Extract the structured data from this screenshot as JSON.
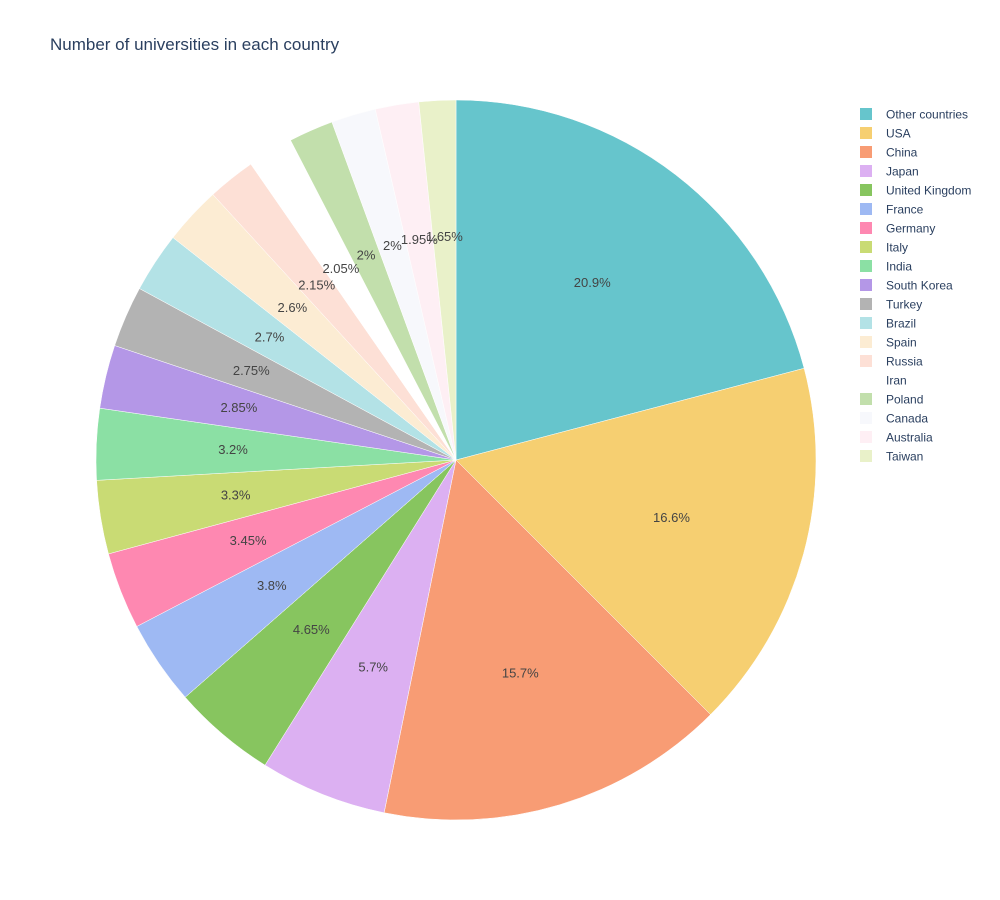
{
  "chart_data": {
    "type": "pie",
    "title": "Number of universities in each country",
    "legend_position": "top-right",
    "direction": "clockwise",
    "start_angle": "top",
    "slices": [
      {
        "label": "Other countries",
        "value": 20.9,
        "text": "20.9%",
        "color": "#66c5cc"
      },
      {
        "label": "USA",
        "value": 16.6,
        "text": "16.6%",
        "color": "#f6cf71"
      },
      {
        "label": "China",
        "value": 15.7,
        "text": "15.7%",
        "color": "#f89c74"
      },
      {
        "label": "Japan",
        "value": 5.7,
        "text": "5.7%",
        "color": "#dcb0f2"
      },
      {
        "label": "United Kingdom",
        "value": 4.65,
        "text": "4.65%",
        "color": "#87c55f"
      },
      {
        "label": "France",
        "value": 3.8,
        "text": "3.8%",
        "color": "#9eb9f3"
      },
      {
        "label": "Germany",
        "value": 3.45,
        "text": "3.45%",
        "color": "#fe88b1"
      },
      {
        "label": "Italy",
        "value": 3.3,
        "text": "3.3%",
        "color": "#c9db74"
      },
      {
        "label": "India",
        "value": 3.2,
        "text": "3.2%",
        "color": "#8be0a4"
      },
      {
        "label": "South Korea",
        "value": 2.85,
        "text": "2.85%",
        "color": "#b497e7"
      },
      {
        "label": "Turkey",
        "value": 2.75,
        "text": "2.75%",
        "color": "#b3b3b3"
      },
      {
        "label": "Brazil",
        "value": 2.7,
        "text": "2.7%",
        "color": "#b3e2e6"
      },
      {
        "label": "Spain",
        "value": 2.6,
        "text": "2.6%",
        "color": "#fcecd3"
      },
      {
        "label": "Russia",
        "value": 2.15,
        "text": "2.15%",
        "color": "#fde0d6"
      },
      {
        "label": "Iran",
        "value": 2.05,
        "text": "2.05%",
        "color": "#ffffff"
      },
      {
        "label": "Poland",
        "value": 2.0,
        "text": "2%",
        "color": "#c2dfac"
      },
      {
        "label": "Canada",
        "value": 2.0,
        "text": "2%",
        "color": "#f7f8fc"
      },
      {
        "label": "Australia",
        "value": 1.95,
        "text": "1.95%",
        "color": "#feeff4"
      },
      {
        "label": "Taiwan",
        "value": 1.65,
        "text": "1.65%",
        "color": "#e9f1c9"
      }
    ]
  }
}
